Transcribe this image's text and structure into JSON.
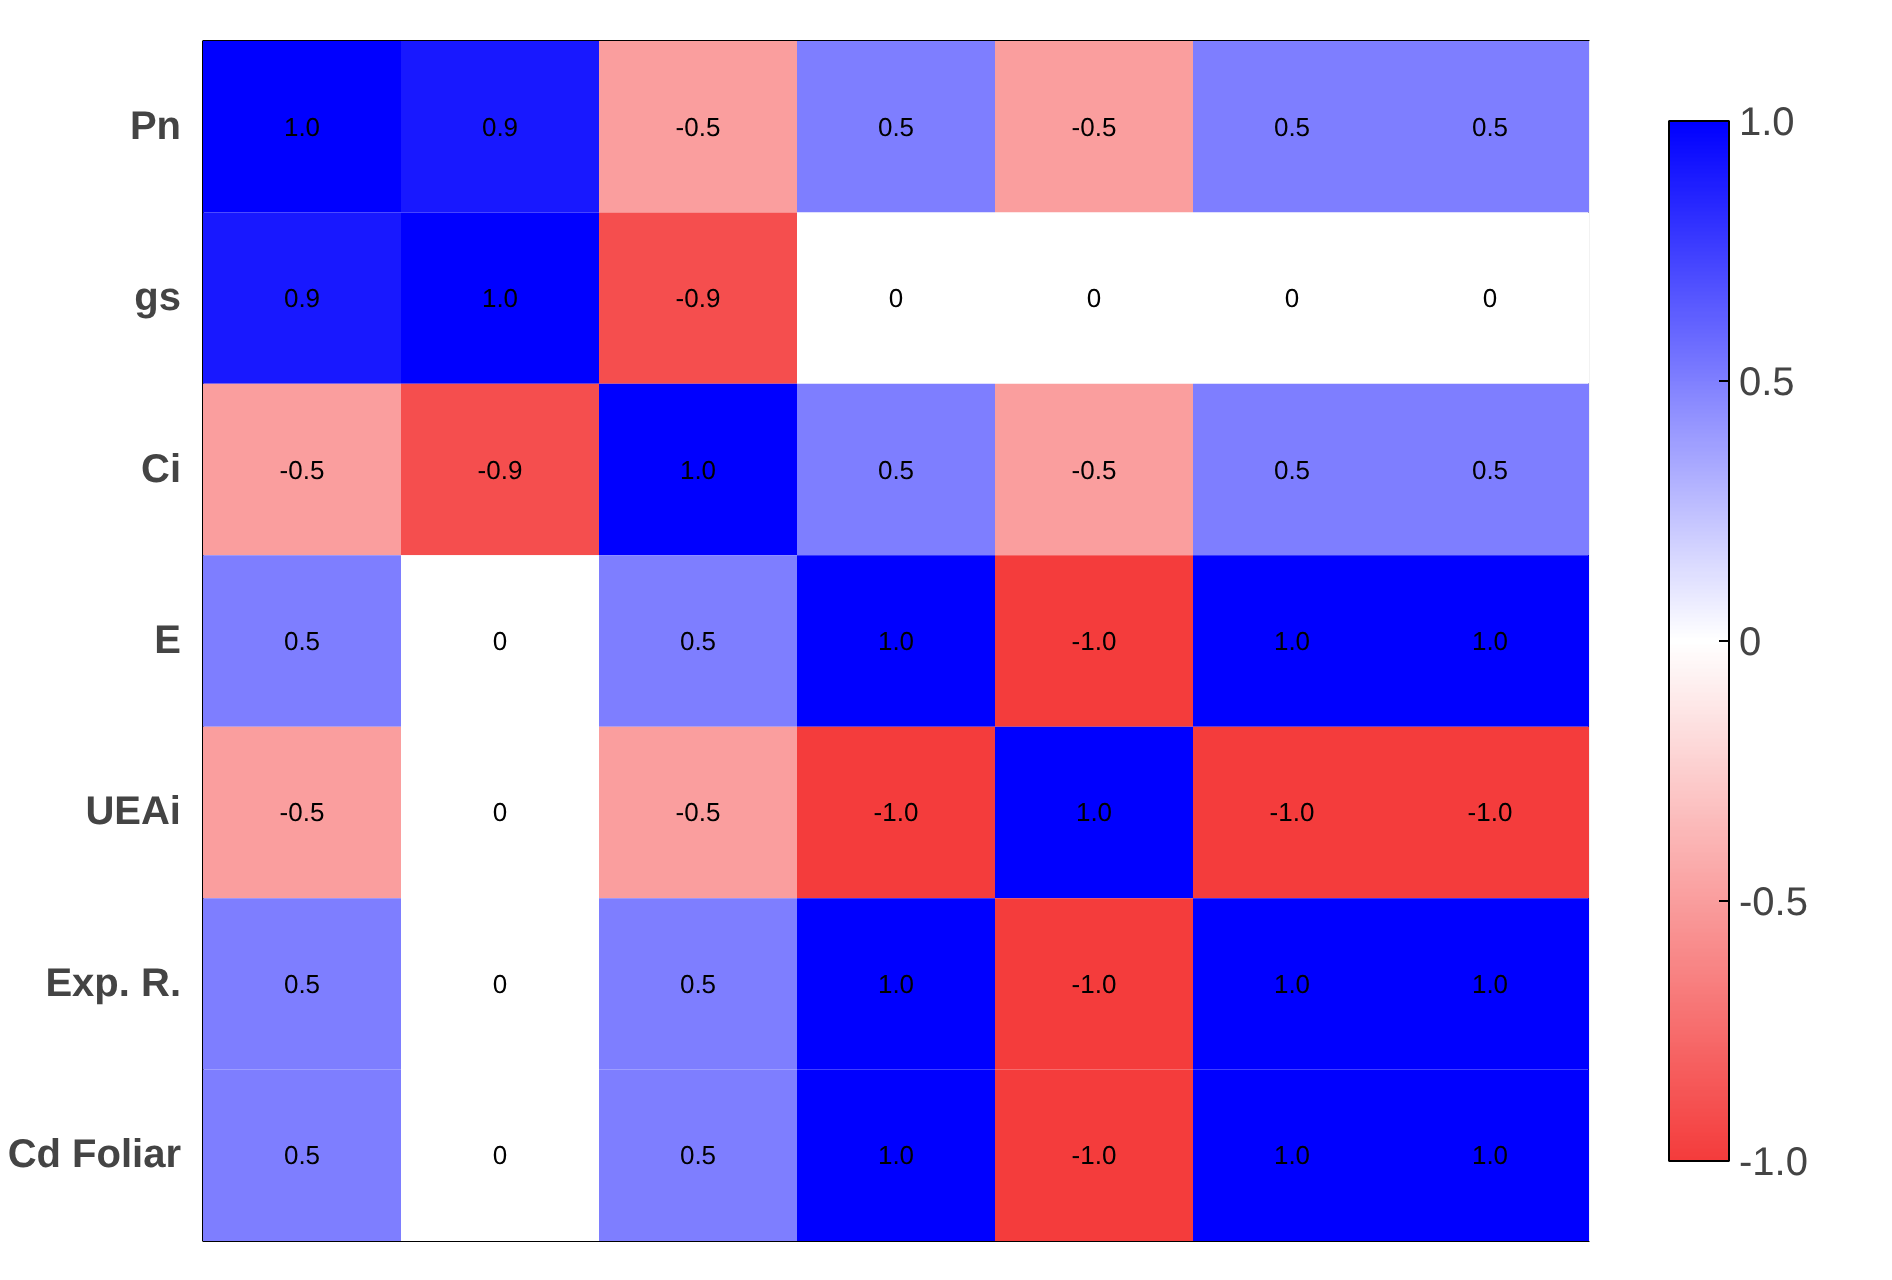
{
  "chart_data": {
    "type": "heatmap",
    "categories": [
      null,
      null,
      null,
      null,
      null,
      null,
      null
    ],
    "y_categories": [
      "Pn",
      "gs",
      "Ci",
      "E",
      "UEAi",
      "Exp. R.",
      "Cd Foliar"
    ],
    "cells": [
      [
        1.0,
        0.9,
        -0.5,
        0.5,
        -0.5,
        0.5,
        0.5
      ],
      [
        0.9,
        1.0,
        -0.9,
        0,
        0,
        0,
        0
      ],
      [
        -0.5,
        -0.9,
        1.0,
        0.5,
        -0.5,
        0.5,
        0.5
      ],
      [
        0.5,
        0,
        0.5,
        1.0,
        -1.0,
        1.0,
        1.0
      ],
      [
        -0.5,
        0,
        -0.5,
        -1.0,
        1.0,
        -1.0,
        -1.0
      ],
      [
        0.5,
        0,
        0.5,
        1.0,
        -1.0,
        1.0,
        1.0
      ],
      [
        0.5,
        0,
        0.5,
        1.0,
        -1.0,
        1.0,
        1.0
      ]
    ],
    "cell_labels": [
      [
        "1.0",
        "0.9",
        "-0.5",
        "0.5",
        "-0.5",
        "0.5",
        "0.5"
      ],
      [
        "0.9",
        "1.0",
        "-0.9",
        "0",
        "0",
        "0",
        "0"
      ],
      [
        "-0.5",
        "-0.9",
        "1.0",
        "0.5",
        "-0.5",
        "0.5",
        "0.5"
      ],
      [
        "0.5",
        "0",
        "0.5",
        "1.0",
        "-1.0",
        "1.0",
        "1.0"
      ],
      [
        "-0.5",
        "0",
        "-0.5",
        "-1.0",
        "1.0",
        "-1.0",
        "-1.0"
      ],
      [
        "0.5",
        "0",
        "0.5",
        "1.0",
        "-1.0",
        "1.0",
        "1.0"
      ],
      [
        "0.5",
        "0",
        "0.5",
        "1.0",
        "-1.0",
        "1.0",
        "1.0"
      ]
    ],
    "clim": [
      -1.0,
      1.0
    ],
    "cticks": [
      {
        "value": -1.0,
        "label": "-1.0"
      },
      {
        "value": -0.5,
        "label": "-0.5"
      },
      {
        "value": 0,
        "label": "0"
      },
      {
        "value": 0.5,
        "label": "0.5"
      },
      {
        "value": 1.0,
        "label": "1.0"
      }
    ]
  }
}
